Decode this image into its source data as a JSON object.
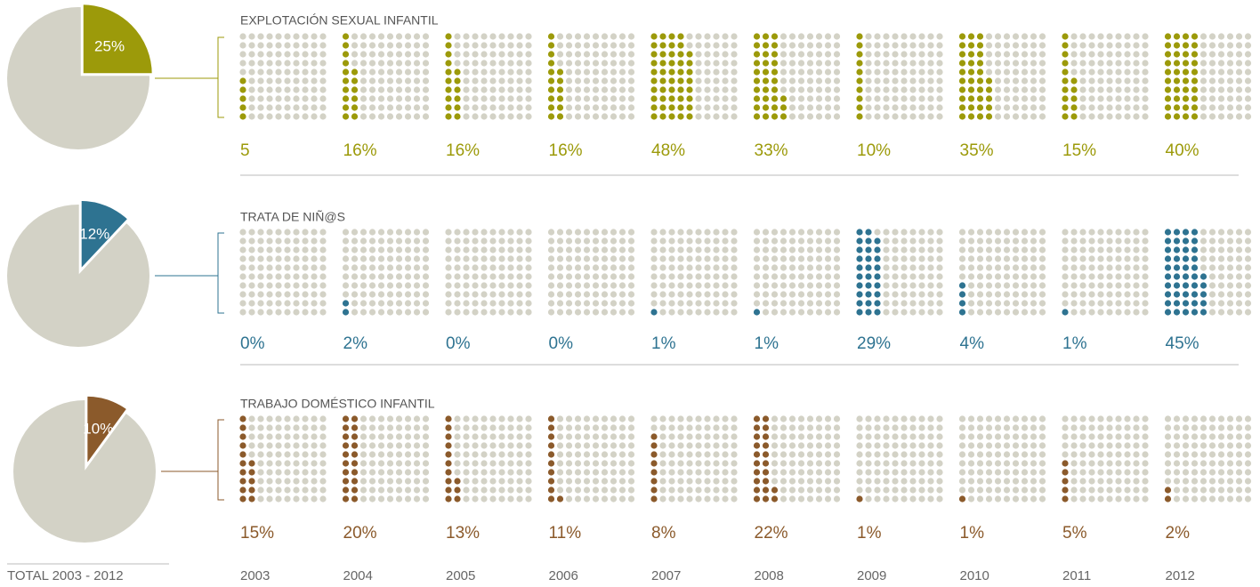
{
  "chart_data": [
    {
      "type": "waffle",
      "title": "EXPLOTACIÓN SEXUAL INFANTIL",
      "color": "#9c9a0a",
      "total": {
        "value": 25,
        "label": "25%"
      },
      "values": [
        5,
        16,
        16,
        16,
        48,
        33,
        10,
        35,
        15,
        40
      ],
      "value_labels": [
        "5",
        "16%",
        "16%",
        "16%",
        "48%",
        "33%",
        "10%",
        "35%",
        "15%",
        "40%"
      ]
    },
    {
      "type": "waffle",
      "title": "TRATA DE NIÑ@S",
      "color": "#2e7391",
      "total": {
        "value": 12,
        "label": "12%"
      },
      "values": [
        0,
        2,
        0,
        0,
        1,
        1,
        29,
        4,
        1,
        45
      ],
      "value_labels": [
        "0%",
        "2%",
        "0%",
        "0%",
        "1%",
        "1%",
        "29%",
        "4%",
        "1%",
        "45%"
      ]
    },
    {
      "type": "waffle",
      "title": "TRABAJO DOMÉSTICO INFANTIL",
      "color": "#8b5a2b",
      "total": {
        "value": 10,
        "label": "10%"
      },
      "values": [
        15,
        20,
        13,
        11,
        8,
        22,
        1,
        1,
        5,
        2
      ],
      "value_labels": [
        "15%",
        "20%",
        "13%",
        "11%",
        "8%",
        "22%",
        "1%",
        "1%",
        "5%",
        "2%"
      ]
    }
  ],
  "footer": {
    "total_label": "TOTAL 2003 - 2012",
    "categories": [
      "2003",
      "2004",
      "2005",
      "2006",
      "2007",
      "2008",
      "2009",
      "2010",
      "2011",
      "2012"
    ]
  }
}
